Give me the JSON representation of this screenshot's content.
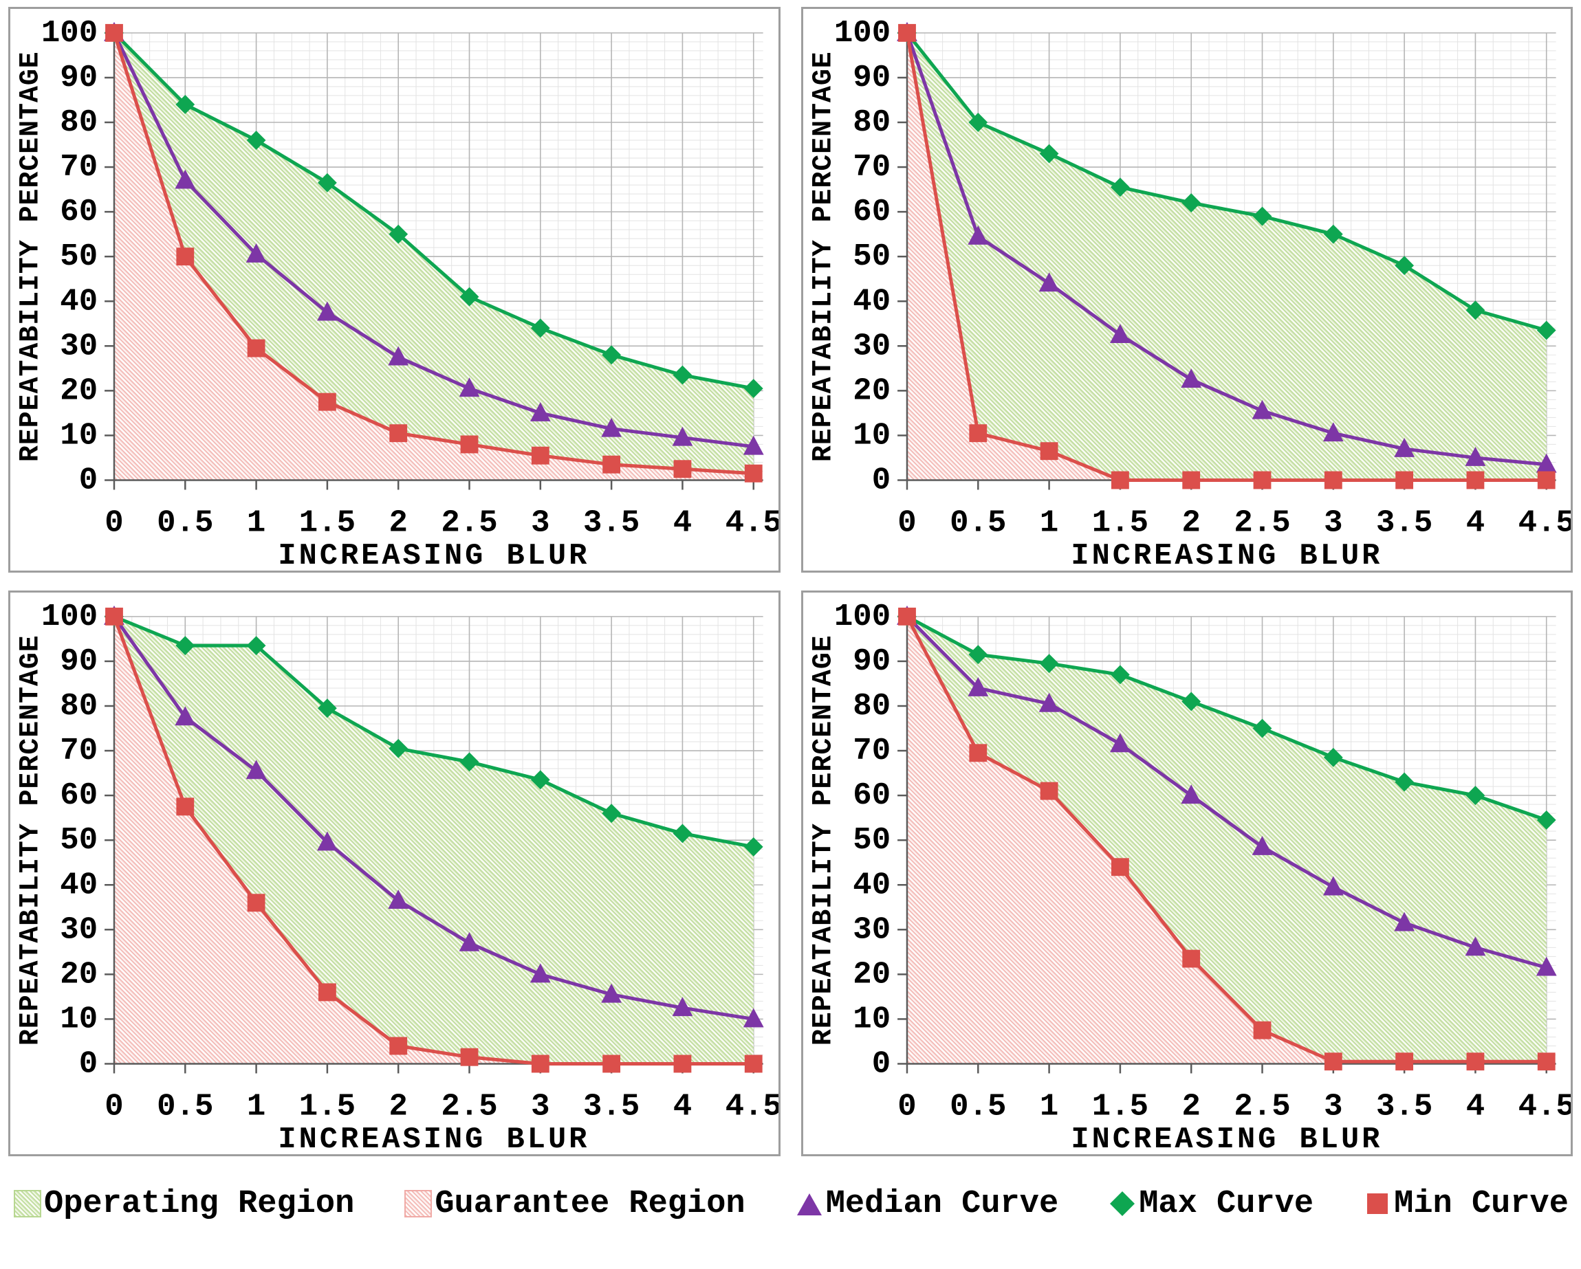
{
  "axes": {
    "x_label": "INCREASING BLUR",
    "y_label": "REPEATABILITY PERCENTAGE",
    "x_tick_labels": [
      "0",
      "0.5",
      "1",
      "1.5",
      "2",
      "2.5",
      "3",
      "3.5",
      "4",
      "4.5"
    ],
    "y_tick_labels": [
      "0",
      "10",
      "20",
      "30",
      "40",
      "50",
      "60",
      "70",
      "80",
      "90",
      "100"
    ],
    "xlim": [
      0,
      4.5
    ],
    "ylim": [
      0,
      100
    ],
    "grid": "on"
  },
  "colors": {
    "max_curve": "#0ea651",
    "median_curve": "#7d36a6",
    "min_curve": "#db4f4b",
    "operating_fill": "#dcecc5",
    "operating_hatch": "#b7d791",
    "guarantee_fill": "#fbe3e1",
    "guarantee_hatch": "#f0aaa6",
    "grid_major": "#b5b5b5",
    "grid_minor": "#e3e3e3",
    "axis": "#5a5a5a",
    "text": "#000000",
    "panel_border": "#9e9e9e"
  },
  "legend": {
    "items": [
      {
        "label": "Operating Region",
        "swatch": "operating-region"
      },
      {
        "label": "Guarantee Region",
        "swatch": "guarantee-region"
      },
      {
        "label": "Median Curve",
        "swatch": "median-triangle"
      },
      {
        "label": "Max Curve",
        "swatch": "max-diamond"
      },
      {
        "label": "Min Curve",
        "swatch": "min-square"
      }
    ]
  },
  "chart_data": [
    {
      "type": "line",
      "position": "top-left",
      "title": "",
      "xlabel": "INCREASING BLUR",
      "ylabel": "REPEATABILITY PERCENTAGE",
      "x": [
        0,
        0.5,
        1,
        1.5,
        2,
        2.5,
        3,
        3.5,
        4,
        4.5
      ],
      "ylim": [
        0,
        100
      ],
      "series": [
        {
          "name": "Max Curve",
          "marker": "diamond",
          "values": [
            100,
            84,
            76,
            66.5,
            55,
            41,
            34,
            28,
            23.5,
            20.5
          ]
        },
        {
          "name": "Median Curve",
          "marker": "triangle",
          "values": [
            100,
            67,
            50.5,
            37.5,
            27.5,
            20.5,
            15,
            11.5,
            9.5,
            7.5
          ]
        },
        {
          "name": "Min Curve",
          "marker": "square",
          "values": [
            100,
            50,
            29.5,
            17.5,
            10.5,
            8,
            5.5,
            3.5,
            2.5,
            1.5
          ]
        }
      ],
      "regions": [
        {
          "name": "Operating Region",
          "between": [
            "Min Curve",
            "Max Curve"
          ]
        },
        {
          "name": "Guarantee Region",
          "between": [
            "zero",
            "Min Curve"
          ]
        }
      ]
    },
    {
      "type": "line",
      "position": "top-right",
      "title": "",
      "xlabel": "INCREASING BLUR",
      "ylabel": "REPEATABILITY PERCENTAGE",
      "x": [
        0,
        0.5,
        1,
        1.5,
        2,
        2.5,
        3,
        3.5,
        4,
        4.5
      ],
      "ylim": [
        0,
        100
      ],
      "series": [
        {
          "name": "Max Curve",
          "marker": "diamond",
          "values": [
            100,
            80,
            73,
            65.5,
            62,
            59,
            55,
            48,
            38,
            33.5
          ]
        },
        {
          "name": "Median Curve",
          "marker": "triangle",
          "values": [
            100,
            54.5,
            44,
            32.5,
            22.5,
            15.5,
            10.5,
            7,
            5,
            3.5
          ]
        },
        {
          "name": "Min Curve",
          "marker": "square",
          "values": [
            100,
            10.5,
            6.5,
            0,
            0,
            0,
            0,
            0,
            0,
            0
          ]
        }
      ],
      "regions": [
        {
          "name": "Operating Region",
          "between": [
            "Min Curve",
            "Max Curve"
          ]
        },
        {
          "name": "Guarantee Region",
          "between": [
            "zero",
            "Min Curve"
          ]
        }
      ]
    },
    {
      "type": "line",
      "position": "bottom-left",
      "title": "",
      "xlabel": "INCREASING BLUR",
      "ylabel": "REPEATABILITY PERCENTAGE",
      "x": [
        0,
        0.5,
        1,
        1.5,
        2,
        2.5,
        3,
        3.5,
        4,
        4.5
      ],
      "ylim": [
        0,
        100
      ],
      "series": [
        {
          "name": "Max Curve",
          "marker": "diamond",
          "values": [
            100,
            93.5,
            93.5,
            79.5,
            70.5,
            67.5,
            63.5,
            56,
            51.5,
            48.5
          ]
        },
        {
          "name": "Median Curve",
          "marker": "triangle",
          "values": [
            100,
            77.5,
            65.5,
            49.5,
            36.5,
            27,
            20,
            15.5,
            12.5,
            10
          ]
        },
        {
          "name": "Min Curve",
          "marker": "square",
          "values": [
            100,
            57.5,
            36,
            16,
            4,
            1.5,
            0,
            0,
            0,
            0
          ]
        }
      ],
      "regions": [
        {
          "name": "Operating Region",
          "between": [
            "Min Curve",
            "Max Curve"
          ]
        },
        {
          "name": "Guarantee Region",
          "between": [
            "zero",
            "Min Curve"
          ]
        }
      ]
    },
    {
      "type": "line",
      "position": "bottom-right",
      "title": "",
      "xlabel": "INCREASING BLUR",
      "ylabel": "REPEATABILITY PERCENTAGE",
      "x": [
        0,
        0.5,
        1,
        1.5,
        2,
        2.5,
        3,
        3.5,
        4,
        4.5
      ],
      "ylim": [
        0,
        100
      ],
      "series": [
        {
          "name": "Max Curve",
          "marker": "diamond",
          "values": [
            100,
            91.5,
            89.5,
            87,
            81,
            75,
            68.5,
            63,
            60,
            54.5
          ]
        },
        {
          "name": "Median Curve",
          "marker": "triangle",
          "values": [
            100,
            84,
            80.5,
            71.5,
            60,
            48.5,
            39.5,
            31.5,
            26,
            21.5
          ]
        },
        {
          "name": "Min Curve",
          "marker": "square",
          "values": [
            100,
            69.5,
            61,
            44,
            23.5,
            7.5,
            0.5,
            0.5,
            0.5,
            0.5
          ]
        }
      ],
      "regions": [
        {
          "name": "Operating Region",
          "between": [
            "Min Curve",
            "Max Curve"
          ]
        },
        {
          "name": "Guarantee Region",
          "between": [
            "zero",
            "Min Curve"
          ]
        }
      ]
    }
  ]
}
